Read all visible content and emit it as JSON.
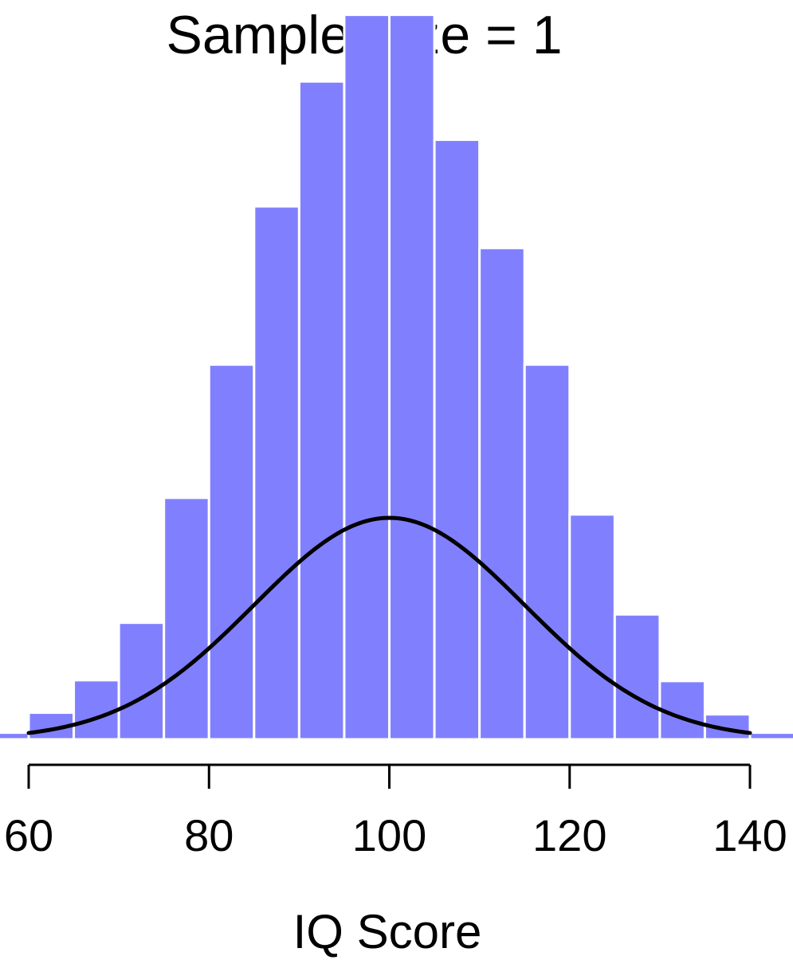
{
  "chart_data": {
    "type": "bar",
    "title": "Sample Size = 1",
    "xlabel": "IQ Score",
    "ylabel": "",
    "xlim": [
      60,
      140
    ],
    "xticks": [
      60,
      80,
      100,
      120,
      140
    ],
    "xtick_labels": [
      "60",
      "80",
      "100",
      "120",
      "140"
    ],
    "bin_width": 5,
    "bins": [
      {
        "start": 55,
        "end": 60,
        "value": 0.0008
      },
      {
        "start": 60,
        "end": 65,
        "value": 0.0032
      },
      {
        "start": 65,
        "end": 70,
        "value": 0.0071
      },
      {
        "start": 70,
        "end": 75,
        "value": 0.014
      },
      {
        "start": 75,
        "end": 80,
        "value": 0.029
      },
      {
        "start": 80,
        "end": 85,
        "value": 0.045
      },
      {
        "start": 85,
        "end": 90,
        "value": 0.064
      },
      {
        "start": 90,
        "end": 95,
        "value": 0.079
      },
      {
        "start": 95,
        "end": 100,
        "value": 0.087
      },
      {
        "start": 100,
        "end": 105,
        "value": 0.087
      },
      {
        "start": 105,
        "end": 110,
        "value": 0.072
      },
      {
        "start": 110,
        "end": 115,
        "value": 0.059
      },
      {
        "start": 115,
        "end": 120,
        "value": 0.045
      },
      {
        "start": 120,
        "end": 125,
        "value": 0.027
      },
      {
        "start": 125,
        "end": 130,
        "value": 0.015
      },
      {
        "start": 130,
        "end": 135,
        "value": 0.007
      },
      {
        "start": 135,
        "end": 140,
        "value": 0.003
      },
      {
        "start": 140,
        "end": 145,
        "value": 0.0008
      }
    ],
    "curve": {
      "type": "normal",
      "mean": 100,
      "sd": 15
    },
    "grid": false,
    "bar_color": "#8080ff",
    "bar_edge_color": "#ffffff",
    "curve_color": "#000000"
  }
}
